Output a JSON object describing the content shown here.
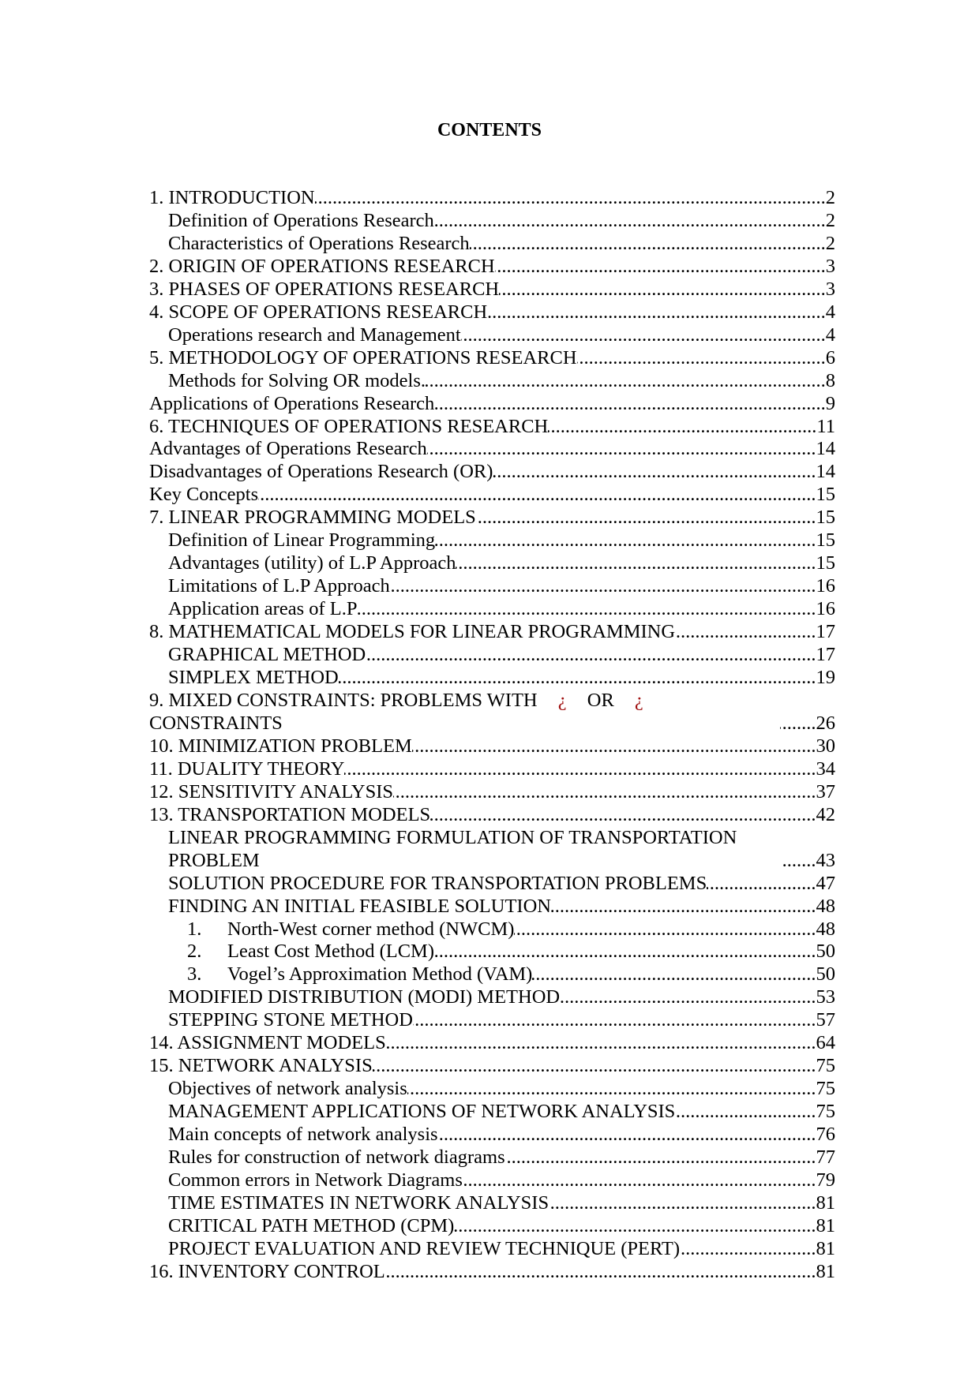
{
  "title": "CONTENTS",
  "entries": [
    {
      "level": 0,
      "text": "1. INTRODUCTION",
      "page": 2
    },
    {
      "level": 1,
      "text": "Definition of Operations Research",
      "page": 2
    },
    {
      "level": 1,
      "text": "Characteristics of Operations Research",
      "page": 2
    },
    {
      "level": 0,
      "text": "2. ORIGIN OF OPERATIONS RESEARCH",
      "page": 3
    },
    {
      "level": 0,
      "text": "3. PHASES OF OPERATIONS RESEARCH",
      "page": 3
    },
    {
      "level": 0,
      "text": "4. SCOPE OF OPERATIONS RESEARCH",
      "page": 4
    },
    {
      "level": 1,
      "text": "Operations research and Management",
      "page": 4
    },
    {
      "level": 0,
      "text": "5. METHODOLOGY OF OPERATIONS RESEARCH",
      "page": 6
    },
    {
      "level": 1,
      "text": "Methods for Solving OR models.",
      "page": 8
    },
    {
      "level": 0,
      "text": "Applications of Operations Research",
      "page": 9
    },
    {
      "level": 0,
      "text": "6. TECHNIQUES OF OPERATIONS RESEARCH",
      "page": 11
    },
    {
      "level": 0,
      "text": "Advantages of Operations Research",
      "page": 14
    },
    {
      "level": 0,
      "text": "Disadvantages of Operations Research (OR)",
      "page": 14
    },
    {
      "level": 0,
      "text": "Key Concepts",
      "page": 15
    },
    {
      "level": 0,
      "text": "7. LINEAR PROGRAMMING MODELS",
      "page": 15
    },
    {
      "level": 1,
      "text": "Definition of Linear Programming",
      "page": 15
    },
    {
      "level": 1,
      "text": "Advantages (utility) of L.P Approach",
      "page": 15
    },
    {
      "level": 1,
      "text": "Limitations of L.P Approach",
      "page": 16
    },
    {
      "level": 1,
      "text": "Application areas of L.P",
      "page": 16
    },
    {
      "level": 0,
      "text": "8. MATHEMATICAL MODELS FOR LINEAR PROGRAMMING",
      "page": 17
    },
    {
      "level": 1,
      "text": "GRAPHICAL METHOD",
      "page": 17
    },
    {
      "level": 1,
      "text": "SIMPLEX METHOD",
      "page": 19
    },
    {
      "level": 0,
      "text": "9. MIXED CONSTRAINTS: PROBLEMS WITH ¿ OR ¿ CONSTRAINTS",
      "page": 26
    },
    {
      "level": 0,
      "text": "10. MINIMIZATION PROBLEM",
      "page": 30
    },
    {
      "level": 0,
      "text": "11. DUALITY THEORY",
      "page": 34
    },
    {
      "level": 0,
      "text": "12. SENSITIVITY ANALYSIS",
      "page": 37
    },
    {
      "level": 0,
      "text": "13. TRANSPORTATION MODELS",
      "page": 42
    },
    {
      "level": 1,
      "text": "LINEAR PROGRAMMING FORMULATION OF TRANSPORTATION PROBLEM",
      "page": 43
    },
    {
      "level": 1,
      "text": "SOLUTION PROCEDURE FOR TRANSPORTATION PROBLEMS",
      "page": 47
    },
    {
      "level": 1,
      "text": "FINDING AN INITIAL FEASIBLE SOLUTION",
      "page": 48
    },
    {
      "level": 2,
      "number": "1.",
      "text": "North-West corner method (NWCM)",
      "page": 48
    },
    {
      "level": 2,
      "number": "2.",
      "text": "Least Cost Method (LCM)",
      "page": 50
    },
    {
      "level": 2,
      "number": "3.",
      "text": "Vogel’s Approximation Method (VAM)",
      "page": 50
    },
    {
      "level": 1,
      "text": "MODIFIED DISTRIBUTION (MODI) METHOD",
      "page": 53
    },
    {
      "level": 1,
      "text": "STEPPING STONE METHOD",
      "page": 57
    },
    {
      "level": 0,
      "text": "14. ASSIGNMENT MODELS",
      "page": 64
    },
    {
      "level": 0,
      "text": "15. NETWORK ANALYSIS",
      "page": 75
    },
    {
      "level": 1,
      "text": "Objectives of network analysis",
      "page": 75
    },
    {
      "level": 1,
      "text": "MANAGEMENT APPLICATIONS OF NETWORK ANALYSIS",
      "page": 75
    },
    {
      "level": 1,
      "text": "Main concepts of network analysis",
      "page": 76
    },
    {
      "level": 1,
      "text": "Rules for construction of network diagrams",
      "page": 77
    },
    {
      "level": 1,
      "text": "Common errors in Network Diagrams",
      "page": 79
    },
    {
      "level": 1,
      "text": "TIME ESTIMATES IN NETWORK ANALYSIS",
      "page": 81
    },
    {
      "level": 1,
      "text": "CRITICAL PATH METHOD (CPM)",
      "page": 81
    },
    {
      "level": 1,
      "text": "PROJECT EVALUATION AND REVIEW TECHNIQUE (PERT)",
      "page": 81
    },
    {
      "level": 0,
      "text": "16. INVENTORY CONTROL",
      "page": 81
    }
  ]
}
